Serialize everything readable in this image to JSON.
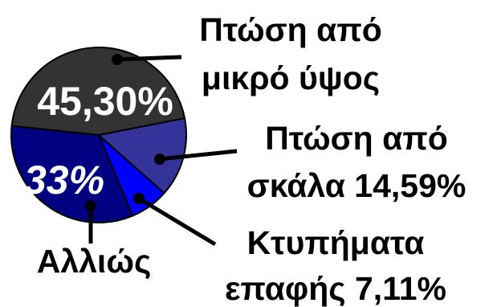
{
  "chart_data": {
    "type": "pie",
    "title": "",
    "slices": [
      {
        "label_lines": [
          "Πτώση από",
          "μικρό ύψος"
        ],
        "value": 45.3,
        "value_text": "45,30%",
        "color": "#333333"
      },
      {
        "label_lines": [
          "Πτώση από",
          "σκάλα 14,59%"
        ],
        "value": 14.59,
        "value_text": "14,59%",
        "color": "#333399"
      },
      {
        "label_lines": [
          "Κτυπήματα",
          "επαφής 7,11%"
        ],
        "value": 7.11,
        "value_text": "7,11%",
        "color": "#0000ff"
      },
      {
        "label_lines": [
          "Αλλιώς"
        ],
        "value": 33,
        "value_text": "33%",
        "color": "#000080"
      }
    ]
  }
}
